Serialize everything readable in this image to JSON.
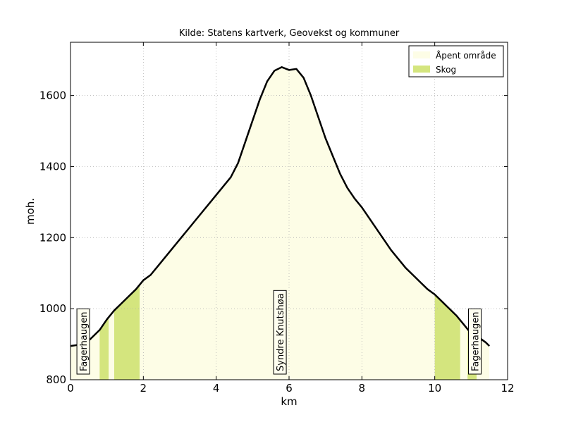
{
  "chart_data": {
    "type": "area",
    "title": "Kilde: Statens kartverk, Geovekst og kommuner",
    "xlabel": "km",
    "ylabel": "moh.",
    "xlim": [
      0,
      12
    ],
    "ylim": [
      800,
      1750
    ],
    "xticks": [
      "0",
      "2",
      "4",
      "6",
      "8",
      "10",
      "12"
    ],
    "yticks": [
      "800",
      "1000",
      "1200",
      "1400",
      "1600"
    ],
    "grid": true,
    "legend_position": "top-right",
    "legend": [
      {
        "label": "Åpent område",
        "color": "#fdfde6"
      },
      {
        "label": "Skog",
        "color": "#d4e57e"
      }
    ],
    "profile": {
      "x": [
        0,
        0.2,
        0.4,
        0.6,
        0.8,
        1.0,
        1.2,
        1.4,
        1.6,
        1.8,
        2.0,
        2.2,
        2.4,
        2.6,
        2.8,
        3.0,
        3.2,
        3.4,
        3.6,
        3.8,
        4.0,
        4.2,
        4.4,
        4.6,
        4.8,
        5.0,
        5.2,
        5.4,
        5.6,
        5.8,
        6.0,
        6.2,
        6.4,
        6.6,
        6.8,
        7.0,
        7.2,
        7.4,
        7.6,
        7.8,
        8.0,
        8.2,
        8.4,
        8.6,
        8.8,
        9.0,
        9.2,
        9.4,
        9.6,
        9.8,
        10.0,
        10.2,
        10.4,
        10.6,
        10.8,
        11.0,
        11.2,
        11.4,
        11.5
      ],
      "y": [
        895,
        898,
        900,
        920,
        940,
        970,
        995,
        1015,
        1035,
        1055,
        1080,
        1095,
        1120,
        1145,
        1170,
        1195,
        1220,
        1245,
        1270,
        1295,
        1320,
        1345,
        1370,
        1410,
        1470,
        1530,
        1590,
        1640,
        1670,
        1680,
        1672,
        1675,
        1650,
        1600,
        1540,
        1480,
        1430,
        1380,
        1340,
        1310,
        1285,
        1255,
        1225,
        1195,
        1165,
        1140,
        1115,
        1095,
        1075,
        1055,
        1040,
        1020,
        1000,
        980,
        955,
        930,
        920,
        905,
        895
      ]
    },
    "land_cover": [
      {
        "type": "Åpent område",
        "from": 0,
        "to": 0.8
      },
      {
        "type": "Skog",
        "from": 0.8,
        "to": 1.05
      },
      {
        "type": "Åpent område",
        "from": 1.05,
        "to": 1.2
      },
      {
        "type": "Skog",
        "from": 1.2,
        "to": 1.9
      },
      {
        "type": "Åpent område",
        "from": 1.9,
        "to": 10.0
      },
      {
        "type": "Skog",
        "from": 10.0,
        "to": 10.7
      },
      {
        "type": "Åpent område",
        "from": 10.7,
        "to": 10.9
      },
      {
        "type": "Skog",
        "from": 10.9,
        "to": 11.15
      },
      {
        "type": "Åpent område",
        "from": 11.15,
        "to": 11.5
      }
    ],
    "annotations": [
      {
        "text": "Fagerhaugen",
        "x": 0.35
      },
      {
        "text": "Syndre Knutshøa",
        "x": 5.75
      },
      {
        "text": "Fagerhaugen",
        "x": 11.1
      }
    ]
  }
}
